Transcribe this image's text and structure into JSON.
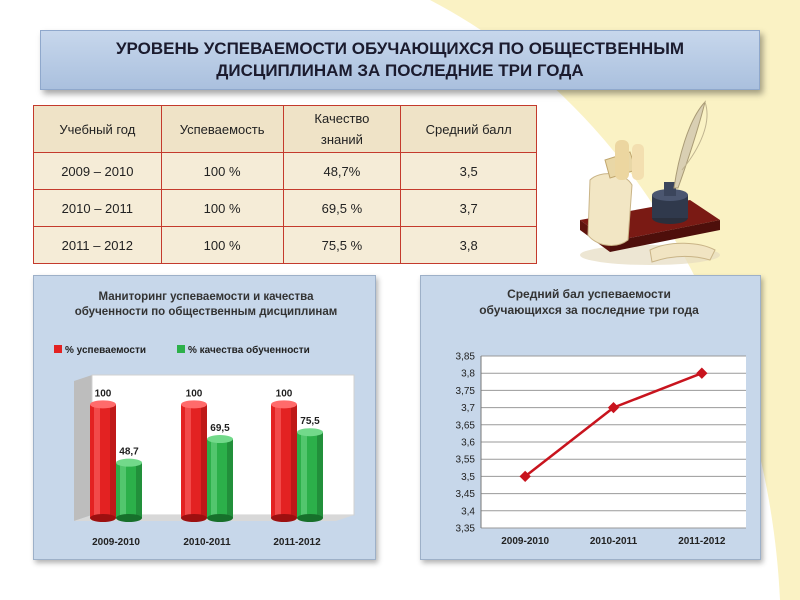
{
  "title": "УРОВЕНЬ УСПЕВАЕМОСТИ ОБУЧАЮЩИХСЯ ПО ОБЩЕСТВЕННЫМ ДИСЦИПЛИНАМ ЗА ПОСЛЕДНИЕ ТРИ ГОДА",
  "table": {
    "headers": [
      "Учебный год",
      "Успеваемость",
      "Качество знаний",
      "Средний балл"
    ],
    "rows": [
      [
        "2009 – 2010",
        "100 %",
        "48,7%",
        "3,5"
      ],
      [
        "2010 – 2011",
        "100 %",
        "69,5 %",
        "3,7"
      ],
      [
        "2011 – 2012",
        "100 %",
        "75,5 %",
        "3,8"
      ]
    ]
  },
  "colors": {
    "series_red": "#e32222",
    "series_green": "#2cb04a",
    "line": "#c8141e",
    "table_border": "#c43a2c",
    "panel_bg": "#c7d7ea",
    "background_curve": "#faf2c4"
  },
  "chart_data": [
    {
      "type": "bar",
      "title": "Маниторинг успеваемости и качества обученности по общественным дисциплинам",
      "categories": [
        "2009-2010",
        "2010-2011",
        "2011-2012"
      ],
      "series": [
        {
          "name": "% успеваемости",
          "values": [
            100,
            100,
            100
          ],
          "labels": [
            "100",
            "100",
            "100"
          ]
        },
        {
          "name": "% качества обученности",
          "values": [
            48.7,
            69.5,
            75.5
          ],
          "labels": [
            "48,7",
            "69,5",
            "75,5"
          ]
        }
      ],
      "ylim": [
        0,
        110
      ],
      "legend": "top",
      "style": "3d-cylinder"
    },
    {
      "type": "line",
      "title": "Средний бал успеваемости обучающихся за последние три года",
      "categories": [
        "2009-2010",
        "2010-2011",
        "2011-2012"
      ],
      "values": [
        3.5,
        3.7,
        3.8
      ],
      "ylim": [
        3.35,
        3.85
      ],
      "yticks": [
        "3,85",
        "3,8",
        "3,75",
        "3,7",
        "3,65",
        "3,6",
        "3,55",
        "3,5",
        "3,45",
        "3,4",
        "3,35"
      ],
      "grid": true
    }
  ]
}
